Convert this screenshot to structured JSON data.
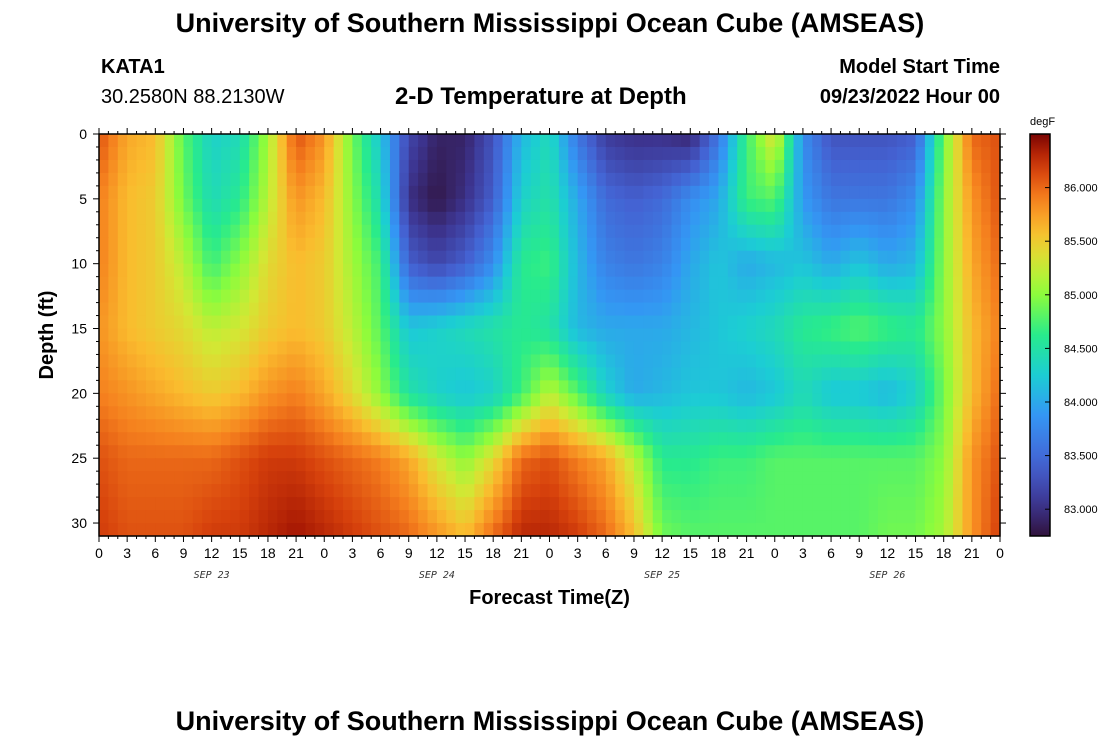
{
  "header": {
    "title": "University of Southern Mississippi Ocean Cube (AMSEAS)",
    "station_id": "KATA1",
    "station_coords": "30.2580N  88.2130W",
    "subtitle": "2-D Temperature at Depth",
    "model_start_label": "Model Start Time",
    "model_start_value": "09/23/2022 Hour 00"
  },
  "footer": {
    "title": "University of Southern Mississippi Ocean Cube (AMSEAS)"
  },
  "chart_data": {
    "type": "heatmap",
    "xlabel": "Forecast Time(Z)",
    "ylabel": "Depth (ft)",
    "x_unit": "hours since model start",
    "xlim": [
      0,
      96
    ],
    "ylim": [
      0,
      31
    ],
    "y_inverted": true,
    "x_tick_labels": [
      "0",
      "3",
      "6",
      "9",
      "12",
      "15",
      "18",
      "21",
      "0",
      "3",
      "6",
      "9",
      "12",
      "15",
      "18",
      "21",
      "0",
      "3",
      "6",
      "9",
      "12",
      "15",
      "18",
      "21",
      "0",
      "3",
      "6",
      "9",
      "12",
      "15",
      "18",
      "21",
      "0"
    ],
    "y_ticks": [
      0,
      5,
      10,
      15,
      20,
      25,
      30
    ],
    "date_labels": [
      {
        "text": "SEP 23",
        "hour": 12
      },
      {
        "text": "SEP 24",
        "hour": 36
      },
      {
        "text": "SEP 25",
        "hour": 60
      },
      {
        "text": "SEP 26",
        "hour": 84
      }
    ],
    "colorbar": {
      "unit": "degF",
      "min": 82.75,
      "max": 86.5,
      "tick_values": [
        83.0,
        83.5,
        84.0,
        84.5,
        85.0,
        85.5,
        86.0
      ],
      "tick_labels": [
        "83.000",
        "83.500",
        "84.000",
        "84.500",
        "85.000",
        "85.500",
        "86.000"
      ]
    },
    "depths": [
      0,
      5,
      10,
      15,
      20,
      25,
      31
    ],
    "hours": [
      0,
      3,
      6,
      9,
      12,
      15,
      18,
      21,
      24,
      27,
      30,
      33,
      36,
      39,
      42,
      45,
      48,
      51,
      54,
      57,
      60,
      63,
      66,
      69,
      72,
      75,
      78,
      81,
      84,
      87,
      90,
      93,
      96
    ],
    "values": [
      [
        86.1,
        85.7,
        85.6,
        84.8,
        84.3,
        84.4,
        85.1,
        86.1,
        85.8,
        84.9,
        84.2,
        83.2,
        82.9,
        82.9,
        83.3,
        84.1,
        84.4,
        83.6,
        83.1,
        83.0,
        83.0,
        82.9,
        83.6,
        84.7,
        85.4,
        83.8,
        83.3,
        83.3,
        83.3,
        83.4,
        84.9,
        86.0,
        86.1
      ],
      [
        85.9,
        85.6,
        85.5,
        84.9,
        84.4,
        84.6,
        85.2,
        85.8,
        85.6,
        85.0,
        84.4,
        83.0,
        82.8,
        83.0,
        83.4,
        84.3,
        84.5,
        84.0,
        83.5,
        83.4,
        83.5,
        83.8,
        84.0,
        84.7,
        84.8,
        83.9,
        83.6,
        83.6,
        83.6,
        83.8,
        85.0,
        85.8,
        86.1
      ],
      [
        85.9,
        85.6,
        85.5,
        85.2,
        84.7,
        85.0,
        85.4,
        85.6,
        85.5,
        85.1,
        84.7,
        83.4,
        83.2,
        83.4,
        83.8,
        84.6,
        84.7,
        84.1,
        83.7,
        83.6,
        83.7,
        84.0,
        84.2,
        84.0,
        84.1,
        84.2,
        84.0,
        84.2,
        84.0,
        84.1,
        85.0,
        85.7,
        86.0
      ],
      [
        85.8,
        85.6,
        85.5,
        85.4,
        85.2,
        85.3,
        85.5,
        85.6,
        85.5,
        85.2,
        84.8,
        84.2,
        84.3,
        84.4,
        84.5,
        84.6,
        84.5,
        84.1,
        84.0,
        84.0,
        84.0,
        84.1,
        84.2,
        84.3,
        84.4,
        84.6,
        84.7,
        84.8,
        84.7,
        84.6,
        85.0,
        85.6,
        85.9
      ],
      [
        85.9,
        85.8,
        85.7,
        85.6,
        85.5,
        85.6,
        85.8,
        85.9,
        85.7,
        85.4,
        85.0,
        84.5,
        84.3,
        84.2,
        84.3,
        84.7,
        85.2,
        84.8,
        84.3,
        84.0,
        84.1,
        84.2,
        84.2,
        84.1,
        84.2,
        84.4,
        84.2,
        84.2,
        84.1,
        84.3,
        84.9,
        85.6,
        86.0
      ],
      [
        86.1,
        86.0,
        86.0,
        86.0,
        86.0,
        86.1,
        86.2,
        86.2,
        86.1,
        86.0,
        85.9,
        85.7,
        85.3,
        85.0,
        85.4,
        86.0,
        86.1,
        85.9,
        85.7,
        85.2,
        84.6,
        84.6,
        84.7,
        84.7,
        84.8,
        84.8,
        84.8,
        84.8,
        84.8,
        84.8,
        85.0,
        85.8,
        86.1
      ],
      [
        86.2,
        86.1,
        86.1,
        86.1,
        86.2,
        86.2,
        86.3,
        86.4,
        86.3,
        86.2,
        86.1,
        86.0,
        85.8,
        85.6,
        86.0,
        86.3,
        86.3,
        86.2,
        86.0,
        85.6,
        84.9,
        84.8,
        84.8,
        84.8,
        84.8,
        84.8,
        84.8,
        84.8,
        84.9,
        84.9,
        85.1,
        85.8,
        86.2
      ]
    ]
  }
}
